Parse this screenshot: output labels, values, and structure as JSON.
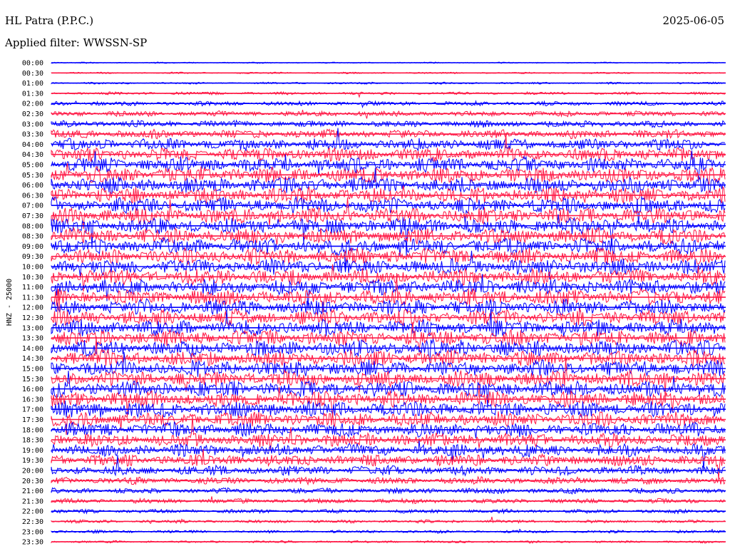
{
  "header": {
    "station": "HL Patra (P.P.C.)",
    "filter": "Applied filter: WWSSN-SP",
    "date": "2025-06-05"
  },
  "chart_data": {
    "type": "line",
    "subtype": "helicorder",
    "title": "HL Patra (P.P.C.)",
    "channel_label": "HNZ - 25000",
    "colors": [
      "#0000ff",
      "#ff1744"
    ],
    "row_labels": [
      "00:00",
      "00:30",
      "01:00",
      "01:30",
      "02:00",
      "02:30",
      "03:00",
      "03:30",
      "04:00",
      "04:30",
      "05:00",
      "05:30",
      "06:00",
      "06:30",
      "07:00",
      "07:30",
      "08:00",
      "08:30",
      "09:00",
      "09:30",
      "10:00",
      "10:30",
      "11:00",
      "11:30",
      "12:00",
      "12:30",
      "13:00",
      "13:30",
      "14:00",
      "14:30",
      "15:00",
      "15:30",
      "16:00",
      "16:30",
      "17:00",
      "17:30",
      "18:00",
      "18:30",
      "19:00",
      "19:30",
      "20:00",
      "20:30",
      "21:00",
      "21:30",
      "22:00",
      "22:30",
      "23:00",
      "23:30"
    ],
    "row_activity": [
      0.08,
      0.1,
      0.12,
      0.18,
      0.28,
      0.35,
      0.42,
      0.55,
      0.75,
      0.85,
      0.95,
      1.0,
      1.0,
      1.0,
      1.0,
      1.0,
      1.0,
      1.0,
      1.0,
      1.0,
      1.0,
      1.0,
      1.0,
      1.0,
      1.0,
      1.0,
      1.0,
      1.0,
      1.0,
      1.0,
      1.0,
      1.0,
      1.0,
      1.0,
      1.0,
      0.95,
      0.9,
      0.85,
      0.8,
      0.75,
      0.6,
      0.45,
      0.35,
      0.3,
      0.25,
      0.2,
      0.18,
      0.15
    ],
    "grid": false
  }
}
